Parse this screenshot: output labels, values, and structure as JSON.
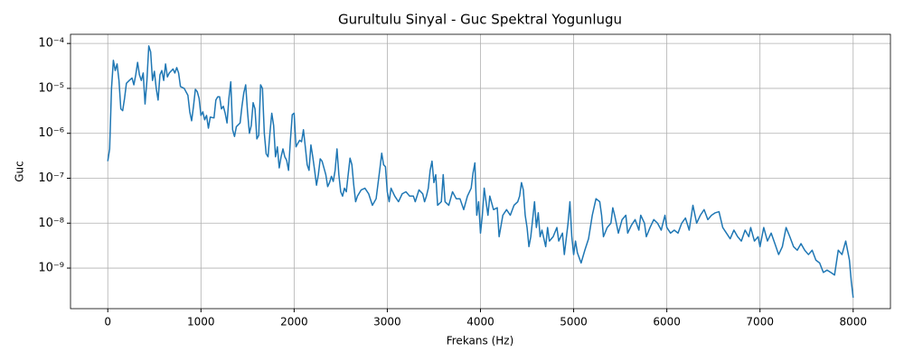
{
  "chart_data": {
    "type": "line",
    "title": "Gurultulu Sinyal - Guc Spektral Yogunlugu",
    "x_label": "Frekans (Hz)",
    "y_label": "Guc",
    "color": "#1f77b4",
    "grid": true,
    "y_scale": "log",
    "xlim": [
      -400,
      8400
    ],
    "xticks": [
      0,
      1000,
      2000,
      3000,
      4000,
      5000,
      6000,
      7000,
      8000
    ],
    "ylim": [
      1.25e-10,
      0.00016
    ],
    "yticks": [
      {
        "value": 1e-09,
        "label": "10⁻⁹"
      },
      {
        "value": 1e-08,
        "label": "10⁻⁸"
      },
      {
        "value": 1e-07,
        "label": "10⁻⁷"
      },
      {
        "value": 1e-06,
        "label": "10⁻⁶"
      },
      {
        "value": 1e-05,
        "label": "10⁻⁵"
      },
      {
        "value": 0.0001,
        "label": "10⁻⁴"
      }
    ],
    "x": [
      0,
      20,
      40,
      60,
      80,
      100,
      120,
      140,
      160,
      180,
      200,
      230,
      260,
      280,
      300,
      320,
      340,
      360,
      380,
      400,
      420,
      440,
      460,
      480,
      500,
      520,
      540,
      560,
      580,
      600,
      620,
      640,
      660,
      700,
      720,
      740,
      760,
      780,
      820,
      860,
      880,
      900,
      920,
      940,
      960,
      980,
      1000,
      1020,
      1040,
      1060,
      1080,
      1100,
      1140,
      1160,
      1180,
      1200,
      1220,
      1240,
      1260,
      1280,
      1300,
      1320,
      1340,
      1360,
      1380,
      1420,
      1440,
      1460,
      1480,
      1500,
      1520,
      1540,
      1560,
      1580,
      1600,
      1620,
      1640,
      1660,
      1680,
      1700,
      1720,
      1740,
      1760,
      1780,
      1800,
      1820,
      1840,
      1860,
      1880,
      1900,
      1920,
      1940,
      1960,
      1980,
      2000,
      2020,
      2040,
      2060,
      2080,
      2100,
      2120,
      2140,
      2160,
      2180,
      2200,
      2220,
      2240,
      2260,
      2280,
      2300,
      2320,
      2340,
      2360,
      2380,
      2400,
      2420,
      2440,
      2460,
      2480,
      2500,
      2520,
      2540,
      2560,
      2580,
      2600,
      2620,
      2640,
      2660,
      2680,
      2720,
      2760,
      2800,
      2840,
      2880,
      2920,
      2940,
      2960,
      2980,
      3000,
      3020,
      3040,
      3080,
      3120,
      3160,
      3200,
      3240,
      3280,
      3300,
      3340,
      3380,
      3400,
      3420,
      3440,
      3460,
      3480,
      3500,
      3520,
      3540,
      3580,
      3600,
      3620,
      3660,
      3700,
      3740,
      3780,
      3820,
      3860,
      3900,
      3920,
      3940,
      3960,
      3980,
      4000,
      4020,
      4040,
      4060,
      4080,
      4100,
      4140,
      4180,
      4200,
      4240,
      4280,
      4320,
      4360,
      4400,
      4420,
      4440,
      4460,
      4480,
      4500,
      4520,
      4540,
      4580,
      4600,
      4620,
      4640,
      4660,
      4700,
      4720,
      4740,
      4780,
      4820,
      4840,
      4880,
      4900,
      4940,
      4960,
      4980,
      5000,
      5020,
      5040,
      5080,
      5120,
      5160,
      5200,
      5240,
      5280,
      5300,
      5320,
      5360,
      5400,
      5420,
      5440,
      5480,
      5520,
      5560,
      5580,
      5620,
      5660,
      5700,
      5720,
      5760,
      5780,
      5820,
      5860,
      5900,
      5940,
      5980,
      6000,
      6040,
      6080,
      6120,
      6160,
      6200,
      6240,
      6280,
      6320,
      6360,
      6400,
      6440,
      6480,
      6520,
      6560,
      6600,
      6640,
      6680,
      6720,
      6760,
      6800,
      6840,
      6880,
      6900,
      6940,
      6980,
      7000,
      7040,
      7080,
      7120,
      7160,
      7200,
      7240,
      7280,
      7320,
      7360,
      7400,
      7440,
      7480,
      7520,
      7560,
      7600,
      7640,
      7680,
      7720,
      7760,
      7800,
      7840,
      7880,
      7920,
      7960,
      7980,
      8000
    ],
    "values": [
      2.4e-07,
      4.5e-07,
      1e-05,
      4.2e-05,
      2.5e-05,
      3.5e-05,
      1.5e-05,
      3.5e-06,
      3.2e-06,
      6e-06,
      1.3e-05,
      1.5e-05,
      1.7e-05,
      1.2e-05,
      2e-05,
      3.8e-05,
      2e-05,
      1.5e-05,
      2.2e-05,
      4.5e-06,
      1.5e-05,
      8.8e-05,
      6.5e-05,
      1.5e-05,
      2.4e-05,
      1e-05,
      5.5e-06,
      2e-05,
      2.5e-05,
      1.5e-05,
      3.5e-05,
      1.8e-05,
      2.2e-05,
      2.7e-05,
      2.2e-05,
      2.9e-05,
      2.2e-05,
      1.1e-05,
      1e-05,
      7e-06,
      3e-06,
      1.9e-06,
      4e-06,
      9.5e-06,
      8.5e-06,
      6e-06,
      2.5e-06,
      3e-06,
      2e-06,
      2.5e-06,
      1.3e-06,
      2.3e-06,
      2.2e-06,
      5.5e-06,
      6.5e-06,
      6.5e-06,
      3.5e-06,
      4e-06,
      2.8e-06,
      1.7e-06,
      6e-06,
      1.4e-05,
      1.2e-06,
      8.5e-07,
      1.4e-06,
      1.7e-06,
      4e-06,
      8e-06,
      1.2e-05,
      3e-06,
      1e-06,
      1.5e-06,
      4.8e-06,
      3.5e-06,
      7.5e-07,
      9e-07,
      1.2e-05,
      1e-05,
      1e-06,
      3.5e-07,
      3e-07,
      1e-06,
      2.8e-06,
      1.5e-06,
      3e-07,
      5e-07,
      1.7e-07,
      3e-07,
      4.5e-07,
      3e-07,
      2.5e-07,
      1.5e-07,
      7e-07,
      2.6e-06,
      2.8e-06,
      5e-07,
      6e-07,
      7e-07,
      6.5e-07,
      1.2e-06,
      5e-07,
      2e-07,
      1.5e-07,
      5.5e-07,
      3e-07,
      1.5e-07,
      7e-08,
      1.2e-07,
      2.7e-07,
      2.4e-07,
      1.7e-07,
      1.2e-07,
      6.5e-08,
      8e-08,
      1.1e-07,
      8.5e-08,
      1.5e-07,
      4.5e-07,
      1.2e-07,
      5e-08,
      4e-08,
      6e-08,
      5e-08,
      1.2e-07,
      2.8e-07,
      2e-07,
      7e-08,
      3e-08,
      4e-08,
      5.5e-08,
      6e-08,
      4.5e-08,
      2.5e-08,
      3.5e-08,
      1.6e-07,
      3.6e-07,
      2e-07,
      1.8e-07,
      5e-08,
      3e-08,
      6e-08,
      4e-08,
      3e-08,
      4.5e-08,
      5e-08,
      4e-08,
      4e-08,
      3e-08,
      5.5e-08,
      4.5e-08,
      3e-08,
      4e-08,
      6e-08,
      1.5e-07,
      2.4e-07,
      8e-08,
      1.2e-07,
      2.5e-08,
      3e-08,
      1.2e-07,
      3e-08,
      2.5e-08,
      5e-08,
      3.5e-08,
      3.5e-08,
      2e-08,
      4e-08,
      6e-08,
      1.3e-07,
      2.2e-07,
      1.5e-08,
      3e-08,
      6e-09,
      1.5e-08,
      6e-08,
      3e-08,
      1.5e-08,
      4e-08,
      2e-08,
      2.2e-08,
      5e-09,
      1.5e-08,
      2e-08,
      1.5e-08,
      2.5e-08,
      3e-08,
      4e-08,
      8e-08,
      5.5e-08,
      1.5e-08,
      8e-09,
      3e-09,
      5e-09,
      3e-08,
      8e-09,
      1.7e-08,
      5e-09,
      7e-09,
      3e-09,
      8e-09,
      4e-09,
      5e-09,
      8e-09,
      4e-09,
      6e-09,
      2e-09,
      1e-08,
      3e-08,
      5e-09,
      2e-09,
      4e-09,
      2.2e-09,
      1.3e-09,
      2.5e-09,
      4.5e-09,
      1.5e-08,
      3.5e-08,
      3e-08,
      1.5e-08,
      5e-09,
      8e-09,
      1e-08,
      2.2e-08,
      1.5e-08,
      6e-09,
      1.2e-08,
      1.5e-08,
      6e-09,
      9e-09,
      1.2e-08,
      7e-09,
      1.5e-08,
      1e-08,
      5e-09,
      8e-09,
      1.2e-08,
      1e-08,
      7e-09,
      1.5e-08,
      8e-09,
      6e-09,
      7e-09,
      6e-09,
      1e-08,
      1.3e-08,
      7e-09,
      2.5e-08,
      1e-08,
      1.5e-08,
      2e-08,
      1.2e-08,
      1.5e-08,
      1.7e-08,
      1.8e-08,
      8e-09,
      6e-09,
      4.5e-09,
      7e-09,
      5e-09,
      4e-09,
      7e-09,
      5e-09,
      8e-09,
      4e-09,
      5e-09,
      3e-09,
      8e-09,
      4e-09,
      6e-09,
      3.5e-09,
      2e-09,
      3e-09,
      8e-09,
      5e-09,
      3e-09,
      2.5e-09,
      3.5e-09,
      2.5e-09,
      2e-09,
      2.5e-09,
      1.5e-09,
      1.3e-09,
      8e-10,
      9e-10,
      8e-10,
      7e-10,
      2.5e-09,
      2e-09,
      4e-09,
      1.5e-09,
      5e-10,
      2.2e-10
    ]
  }
}
